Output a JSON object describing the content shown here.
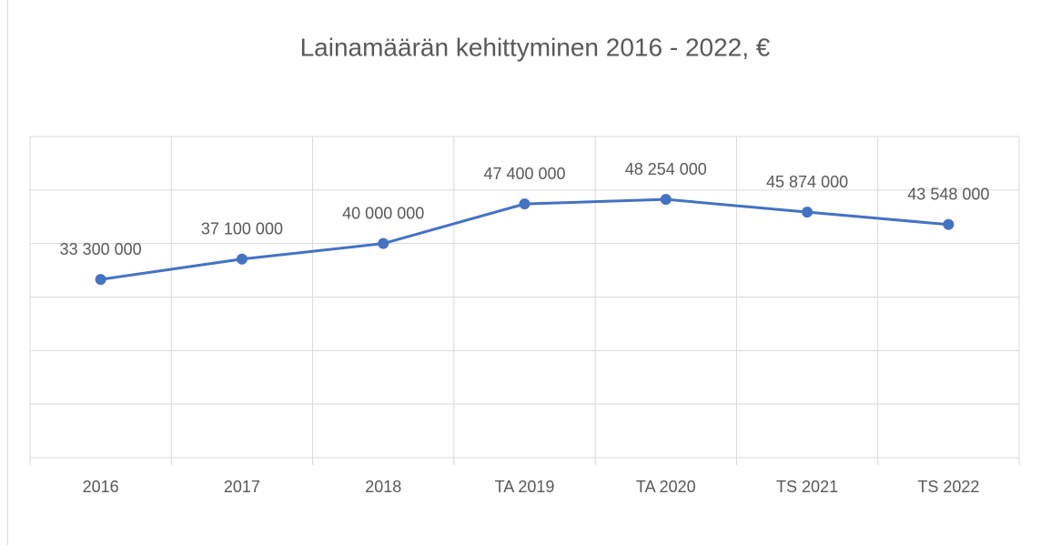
{
  "chart_data": {
    "type": "line",
    "title": "Lainamäärän kehittyminen 2016 - 2022, €",
    "categories": [
      "2016",
      "2017",
      "2018",
      "TA 2019",
      "TA 2020",
      "TS 2021",
      "TS 2022"
    ],
    "series": [
      {
        "name": "Lainamäärä",
        "color": "#4472c4",
        "values": [
          33300000,
          37100000,
          40000000,
          47400000,
          48254000,
          45874000,
          43548000
        ],
        "value_labels": [
          "33 300 000",
          "37 100 000",
          "40 000 000",
          "47 400 000",
          "48 254 000",
          "45 874 000",
          "43 548 000"
        ]
      }
    ],
    "ylim": [
      0,
      60000000
    ],
    "yticks": [
      0,
      10000000,
      20000000,
      30000000,
      40000000,
      50000000,
      60000000
    ],
    "grid": true
  }
}
